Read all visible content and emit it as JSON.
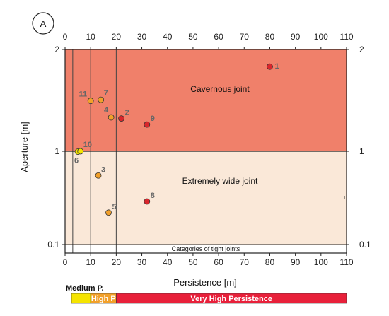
{
  "chart_data": {
    "type": "scatter",
    "panel_label": "A",
    "xlabel": "Persistence [m]",
    "ylabel": "Aperture [m]",
    "xlim": [
      0,
      110
    ],
    "xticks": [
      "0",
      "10",
      "20",
      "30",
      "40",
      "50",
      "60",
      "70",
      "80",
      "90",
      "100",
      "110"
    ],
    "yscale": "log",
    "yticks": [
      {
        "value": 0.1,
        "label": "0.1"
      },
      {
        "value": 1,
        "label": "1"
      },
      {
        "value": 2,
        "label": "2"
      }
    ],
    "regions": [
      {
        "label": "Cavernous joint",
        "y_from": 1,
        "y_to": 2,
        "color": "#f0806a"
      },
      {
        "label": "Extremely wide joint",
        "y_from": 0.1,
        "y_to": 1,
        "color": "#fae8d8"
      },
      {
        "label": "Categories of tight joints",
        "y_from": 0.08,
        "y_to": 0.1,
        "color": "#ffffff"
      }
    ],
    "vertical_lines": [
      3,
      10,
      20
    ],
    "points": [
      {
        "label": "1",
        "x": 80,
        "y": 1.78,
        "color": "#d9262c"
      },
      {
        "label": "2",
        "x": 22,
        "y": 1.25,
        "color": "#d9262c"
      },
      {
        "label": "3",
        "x": 13,
        "y": 0.55,
        "color": "#f2a02a"
      },
      {
        "label": "4",
        "x": 18,
        "y": 1.26,
        "color": "#f2a02a"
      },
      {
        "label": "5",
        "x": 17,
        "y": 0.22,
        "color": "#f2a02a"
      },
      {
        "label": "6",
        "x": 5,
        "y": 0.99,
        "color": "#f5e400"
      },
      {
        "label": "7",
        "x": 14,
        "y": 1.42,
        "color": "#f2a02a"
      },
      {
        "label": "8",
        "x": 32,
        "y": 0.29,
        "color": "#d9262c"
      },
      {
        "label": "9",
        "x": 32,
        "y": 1.2,
        "color": "#d9262c"
      },
      {
        "label": "10",
        "x": 6,
        "y": 1.0,
        "color": "#f5e400"
      },
      {
        "label": "11",
        "x": 10,
        "y": 1.41,
        "color": "#f2a02a"
      }
    ],
    "persistence_bar": {
      "title": "Medium P.",
      "segments": [
        {
          "label": "",
          "x_from": 3,
          "x_to": 10,
          "color": "#f5e400"
        },
        {
          "label": "High P",
          "x_from": 10,
          "x_to": 20,
          "color": "#f2a02a"
        },
        {
          "label": "Very High Persistence",
          "x_from": 20,
          "x_to": 110,
          "color": "#e8203a"
        }
      ]
    }
  }
}
